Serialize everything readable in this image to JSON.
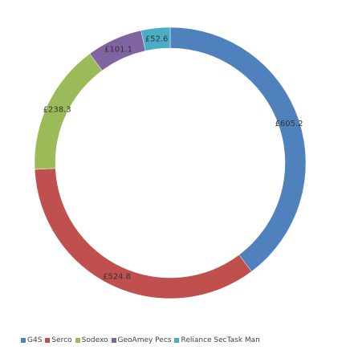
{
  "chart_data": {
    "type": "pie",
    "donut": true,
    "categories": [
      "G4S",
      "Serco",
      "Sodexo",
      "GeoAmey Pecs",
      "Reliance SecTask Man"
    ],
    "values": [
      605.2,
      524.8,
      238.3,
      101.1,
      52.6
    ],
    "value_labels": [
      "£605.2",
      "£524.8",
      "£238.3",
      "£101.1",
      "£52.6"
    ],
    "colors": [
      "#4f81bd",
      "#c0504d",
      "#9bbb59",
      "#8064a2",
      "#4bacc6"
    ],
    "start_angle_deg": 0,
    "direction": "clockwise",
    "legend_position": "bottom",
    "title": ""
  }
}
